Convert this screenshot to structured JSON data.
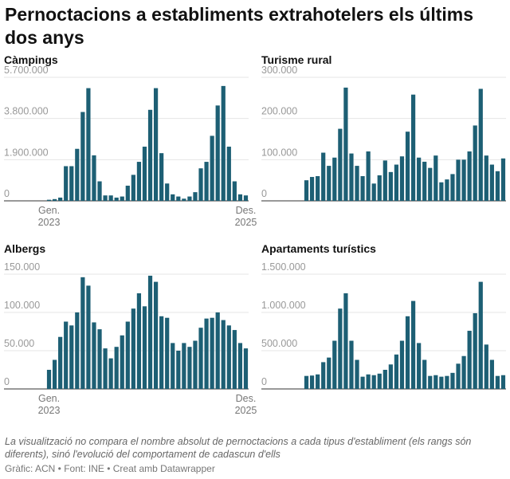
{
  "title": "Pernoctacions a establiments extrahotelers els últims dos anys",
  "note": "La visualització no compara el nombre absolut de pernoctacions a cada tipus d'establiment (els rangs són diferents), sinó l'evolució del comportament de cadascun d'ells",
  "source": "Gràfic: ACN • Font: INE • Creat amb Datawrapper",
  "chart_data": [
    {
      "type": "bar",
      "title": "Càmpings",
      "color": "#1d5f74",
      "categories": [
        "Gen. 2023",
        null,
        null,
        null,
        null,
        null,
        null,
        null,
        null,
        null,
        null,
        null,
        null,
        null,
        null,
        null,
        null,
        null,
        null,
        null,
        null,
        null,
        null,
        null,
        null,
        null,
        null,
        null,
        null,
        null,
        null,
        null,
        null,
        null,
        null,
        "Des. 2025"
      ],
      "values": [
        50000,
        80000,
        150000,
        1600000,
        1600000,
        2400000,
        4100000,
        5200000,
        2100000,
        900000,
        250000,
        250000,
        150000,
        200000,
        700000,
        1200000,
        1800000,
        2500000,
        4200000,
        5200000,
        2200000,
        800000,
        300000,
        200000,
        100000,
        200000,
        400000,
        1500000,
        1800000,
        3000000,
        4400000,
        5300000,
        2500000,
        900000,
        300000,
        250000
      ],
      "ylim": [
        0,
        5700000
      ],
      "yticks": [
        0,
        {
          "value": 1900000,
          "label": "1.900.000"
        },
        {
          "value": 3800000,
          "label": "3.800.000"
        },
        {
          "value": 5700000,
          "label": "5.700.000"
        }
      ]
    },
    {
      "type": "bar",
      "title": "Turisme rural",
      "color": "#1d5f74",
      "values": [
        50000,
        58000,
        60000,
        117000,
        85000,
        105000,
        175000,
        275000,
        115000,
        85000,
        60000,
        120000,
        42000,
        62000,
        98000,
        70000,
        88000,
        108000,
        168000,
        258000,
        105000,
        95000,
        80000,
        110000,
        45000,
        52000,
        65000,
        100000,
        100000,
        120000,
        183000,
        272000,
        110000,
        88000,
        72000,
        103000
      ],
      "ylim": [
        0,
        300000
      ],
      "yticks": [
        0,
        {
          "value": 100000,
          "label": "100.000"
        },
        {
          "value": 200000,
          "label": "200.000"
        },
        {
          "value": 300000,
          "label": "300.000"
        }
      ]
    },
    {
      "type": "bar",
      "title": "Albergs",
      "color": "#1d5f74",
      "categories": [
        "Gen. 2023",
        null,
        null,
        null,
        null,
        null,
        null,
        null,
        null,
        null,
        null,
        null,
        null,
        null,
        null,
        null,
        null,
        null,
        null,
        null,
        null,
        null,
        null,
        null,
        null,
        null,
        null,
        null,
        null,
        null,
        null,
        null,
        null,
        null,
        null,
        "Des. 2025"
      ],
      "values": [
        25000,
        38000,
        68000,
        88000,
        83000,
        100000,
        146000,
        135000,
        87000,
        78000,
        53000,
        40000,
        55000,
        70000,
        88000,
        105000,
        125000,
        108000,
        148000,
        140000,
        95000,
        93000,
        60000,
        50000,
        60000,
        55000,
        63000,
        80000,
        92000,
        93000,
        100000,
        90000,
        83000,
        77000,
        60000,
        53000
      ],
      "ylim": [
        0,
        150000
      ],
      "yticks": [
        0,
        {
          "value": 50000,
          "label": "50.000"
        },
        {
          "value": 100000,
          "label": "100.000"
        },
        {
          "value": 150000,
          "label": "150.000"
        }
      ]
    },
    {
      "type": "bar",
      "title": "Apartaments turístics",
      "color": "#1d5f74",
      "values": [
        170000,
        175000,
        190000,
        350000,
        410000,
        630000,
        1050000,
        1250000,
        630000,
        380000,
        160000,
        190000,
        180000,
        200000,
        250000,
        320000,
        450000,
        630000,
        950000,
        1150000,
        600000,
        380000,
        170000,
        180000,
        160000,
        170000,
        210000,
        330000,
        430000,
        760000,
        990000,
        1400000,
        580000,
        380000,
        170000,
        180000
      ],
      "ylim": [
        0,
        1500000
      ],
      "yticks": [
        0,
        {
          "value": 500000,
          "label": "500.000"
        },
        {
          "value": 1000000,
          "label": "1.000.000"
        },
        {
          "value": 1500000,
          "label": "1.500.000"
        }
      ]
    }
  ]
}
